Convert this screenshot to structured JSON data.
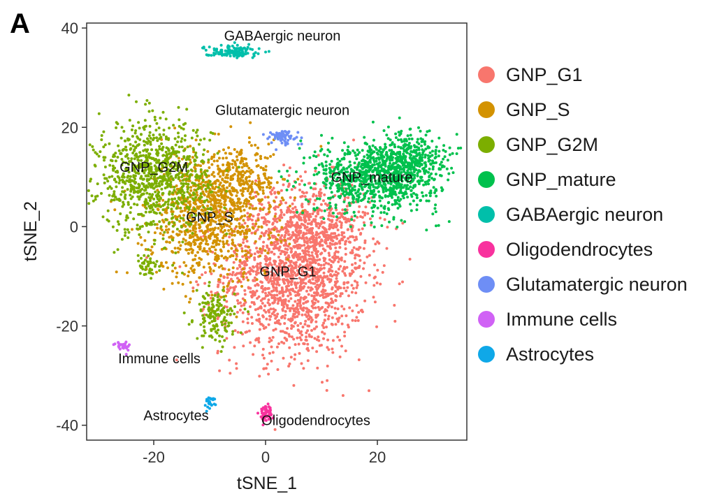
{
  "panel_label": "A",
  "chart_data": {
    "type": "scatter",
    "title": "",
    "xlabel": "tSNE_1",
    "ylabel": "tSNE_2",
    "xlim": [
      -32,
      36
    ],
    "ylim": [
      -43,
      41
    ],
    "xticks": [
      -20,
      0,
      20
    ],
    "yticks": [
      -40,
      -20,
      0,
      20,
      40
    ],
    "grid": false,
    "legend_position": "right",
    "series": [
      {
        "name": "GNP_G1",
        "color": "#F8766D",
        "label": "GNP_G1",
        "label_x": 4,
        "label_y": -10,
        "clusters": [
          {
            "cx": 5,
            "cy": -10,
            "sx": 6.5,
            "sy": 8,
            "n": 1500
          },
          {
            "cx": 9,
            "cy": 0,
            "sx": 5,
            "sy": 5,
            "n": 400
          }
        ]
      },
      {
        "name": "GNP_S",
        "color": "#D39200",
        "label": "GNP_S",
        "label_x": -10,
        "label_y": 1,
        "clusters": [
          {
            "cx": -10,
            "cy": 2,
            "sx": 5.5,
            "sy": 6.5,
            "n": 900
          },
          {
            "cx": -4,
            "cy": 9,
            "sx": 3,
            "sy": 3,
            "n": 200
          }
        ]
      },
      {
        "name": "GNP_G2M",
        "color": "#7CAE00",
        "label": "GNP_G2M",
        "label_x": -20,
        "label_y": 11,
        "clusters": [
          {
            "cx": -20,
            "cy": 10,
            "sx": 5,
            "sy": 5.5,
            "n": 900
          },
          {
            "cx": -9,
            "cy": -18,
            "sx": 1.8,
            "sy": 2.5,
            "n": 150
          },
          {
            "cx": -21,
            "cy": -8,
            "sx": 1,
            "sy": 1.5,
            "n": 40
          }
        ]
      },
      {
        "name": "GNP_mature",
        "color": "#00C14D",
        "label": "GNP_mature",
        "label_x": 19,
        "label_y": 9,
        "clusters": [
          {
            "cx": 20,
            "cy": 10,
            "sx": 5.5,
            "sy": 3.6,
            "n": 900
          },
          {
            "cx": 26,
            "cy": 14,
            "sx": 3,
            "sy": 2.5,
            "n": 250
          }
        ]
      },
      {
        "name": "GABAergic neuron",
        "color": "#00BFAA",
        "label": "GABAergic  neuron",
        "label_x": 3,
        "label_y": 37.5,
        "clusters": [
          {
            "cx": -6,
            "cy": 35.3,
            "sx": 2.5,
            "sy": 0.6,
            "n": 120
          }
        ]
      },
      {
        "name": "Oligodendrocytes",
        "color": "#F8329E",
        "label": "Oligodendrocytes",
        "label_x": 9,
        "label_y": -40,
        "clusters": [
          {
            "cx": 0,
            "cy": -37.5,
            "sx": 0.6,
            "sy": 0.8,
            "n": 60
          }
        ]
      },
      {
        "name": "Glutamatergic neuron",
        "color": "#6E8EF5",
        "label": "Glutamatergic neuron",
        "label_x": 3,
        "label_y": 22.5,
        "clusters": [
          {
            "cx": 3,
            "cy": 18,
            "sx": 1.6,
            "sy": 0.8,
            "n": 70
          }
        ]
      },
      {
        "name": "Immune cells",
        "color": "#D062F5",
        "label": "Immune cells",
        "label_x": -19,
        "label_y": -27.5,
        "clusters": [
          {
            "cx": -25.5,
            "cy": -24,
            "sx": 0.6,
            "sy": 0.5,
            "n": 30
          }
        ]
      },
      {
        "name": "Astrocytes",
        "color": "#0FA8E8",
        "label": "Astrocytes",
        "label_x": -16,
        "label_y": -39,
        "clusters": [
          {
            "cx": -10,
            "cy": -35.5,
            "sx": 0.5,
            "sy": 0.6,
            "n": 25
          }
        ]
      }
    ]
  }
}
